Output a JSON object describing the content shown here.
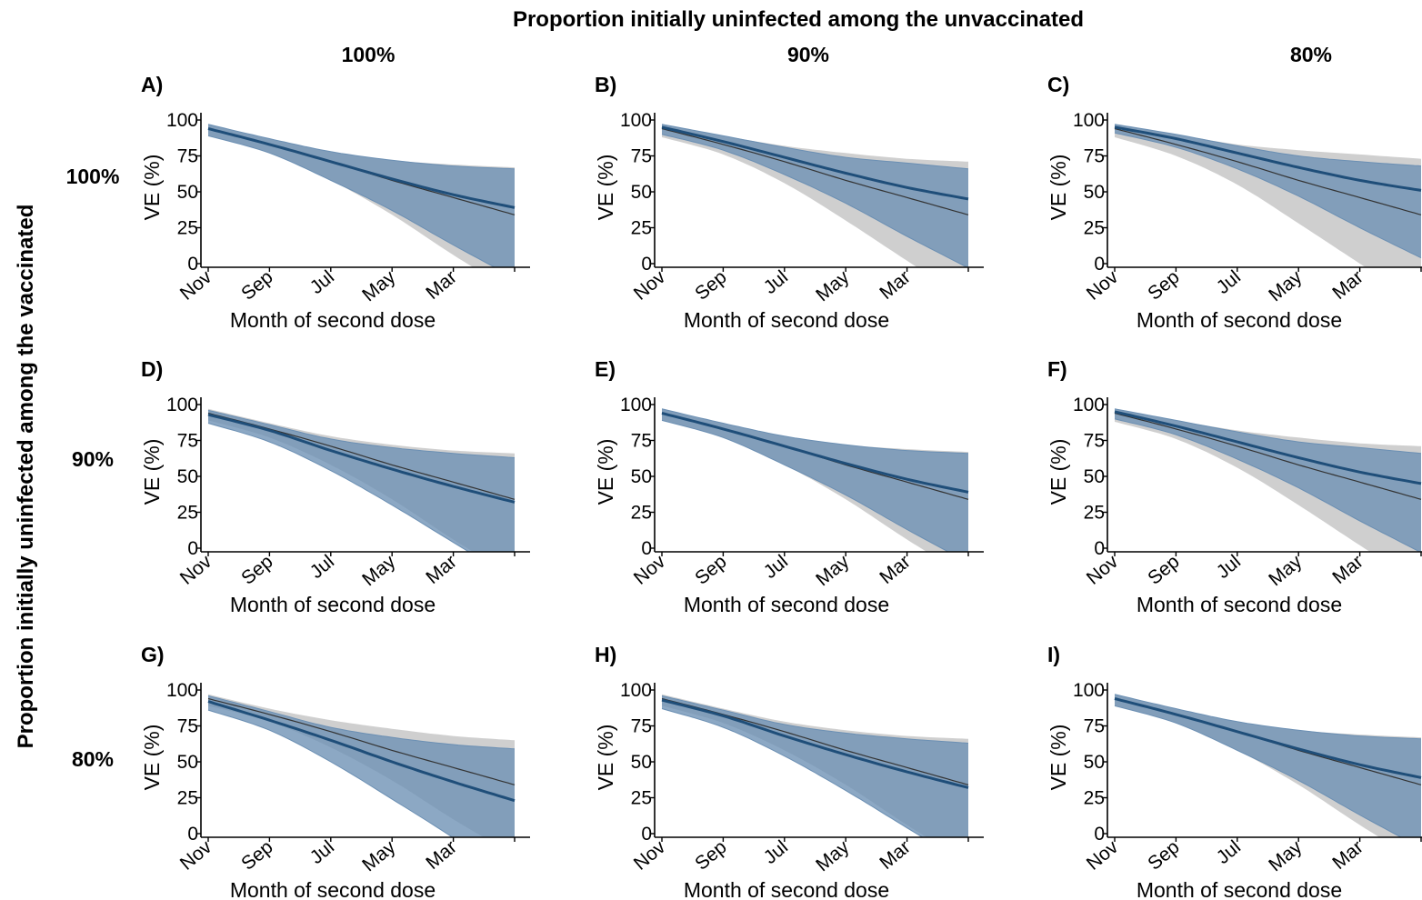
{
  "figure": {
    "col_header_title": "Proportion initially uninfected among the unvaccinated",
    "row_header_title": "Proportion initially uninfected among the vaccinated",
    "col_headers": [
      "100%",
      "90%",
      "80%"
    ],
    "row_headers": [
      "100%",
      "90%",
      "80%"
    ]
  },
  "colors": {
    "main_line": "#1f4e79",
    "main_band": "#6b8fb3",
    "ref_line": "#333333",
    "ref_band": "#cfcfcf"
  },
  "chart_data": [
    {
      "type": "line",
      "panel_label": "A)",
      "xlabel": "Month of second dose",
      "ylabel": "VE (%)",
      "x_ticks": [
        "Nov",
        "Sep",
        "Jul",
        "May",
        "Mar"
      ],
      "y_ticks": [
        "0",
        "25",
        "50",
        "75",
        "100"
      ],
      "ylim": [
        0,
        100
      ],
      "x": [
        0,
        1,
        2,
        3,
        4,
        5
      ],
      "series": [
        {
          "role": "main",
          "values": [
            94,
            83,
            71,
            59,
            48,
            39
          ],
          "lower": [
            89,
            77,
            58,
            37,
            13,
            -10
          ],
          "upper": [
            97,
            87,
            78,
            72,
            68,
            66
          ]
        },
        {
          "role": "reference",
          "values": [
            94,
            83,
            71,
            58,
            46,
            34
          ],
          "lower": [
            89,
            77,
            58,
            34,
            6,
            -20
          ],
          "upper": [
            97,
            87,
            78,
            72,
            69,
            67
          ]
        }
      ]
    },
    {
      "type": "line",
      "panel_label": "B)",
      "xlabel": "Month of second dose",
      "ylabel": "VE (%)",
      "x_ticks": [
        "Nov",
        "Sep",
        "Jul",
        "May",
        "Mar"
      ],
      "y_ticks": [
        "0",
        "25",
        "50",
        "75",
        "100"
      ],
      "ylim": [
        0,
        100
      ],
      "x": [
        0,
        1,
        2,
        3,
        4,
        5
      ],
      "series": [
        {
          "role": "main",
          "values": [
            95,
            85,
            74,
            63,
            53,
            45
          ],
          "lower": [
            90,
            79,
            62,
            42,
            19,
            -3
          ],
          "upper": [
            97,
            89,
            81,
            74,
            70,
            66
          ]
        },
        {
          "role": "reference",
          "values": [
            94,
            83,
            71,
            58,
            46,
            34
          ],
          "lower": [
            88,
            76,
            56,
            30,
            2,
            -25
          ],
          "upper": [
            97,
            89,
            82,
            77,
            73,
            71
          ]
        }
      ]
    },
    {
      "type": "line",
      "panel_label": "C)",
      "xlabel": "Month of second dose",
      "ylabel": "VE (%)",
      "x_ticks": [
        "Nov",
        "Sep",
        "Jul",
        "May",
        "Mar"
      ],
      "y_ticks": [
        "0",
        "25",
        "50",
        "75",
        "100"
      ],
      "ylim": [
        0,
        100
      ],
      "x": [
        0,
        1,
        2,
        3,
        4,
        5
      ],
      "series": [
        {
          "role": "main",
          "values": [
            95,
            87,
            77,
            67,
            58,
            51
          ],
          "lower": [
            91,
            81,
            66,
            47,
            25,
            4
          ],
          "upper": [
            97,
            90,
            82,
            75,
            71,
            68
          ]
        },
        {
          "role": "reference",
          "values": [
            94,
            83,
            71,
            58,
            46,
            34
          ],
          "lower": [
            88,
            75,
            55,
            28,
            0,
            -28
          ],
          "upper": [
            97,
            90,
            83,
            79,
            76,
            73
          ]
        }
      ]
    },
    {
      "type": "line",
      "panel_label": "D)",
      "xlabel": "Month of second dose",
      "ylabel": "VE (%)",
      "x_ticks": [
        "Nov",
        "Sep",
        "Jul",
        "May",
        "Mar"
      ],
      "y_ticks": [
        "0",
        "25",
        "50",
        "75",
        "100"
      ],
      "ylim": [
        0,
        100
      ],
      "x": [
        0,
        1,
        2,
        3,
        4,
        5
      ],
      "series": [
        {
          "role": "main",
          "values": [
            93,
            82,
            68,
            55,
            43,
            32
          ],
          "lower": [
            87,
            74,
            54,
            30,
            4,
            -22
          ],
          "upper": [
            96,
            86,
            76,
            70,
            66,
            63
          ]
        },
        {
          "role": "reference",
          "values": [
            94,
            83,
            71,
            58,
            46,
            34
          ],
          "lower": [
            89,
            77,
            58,
            34,
            6,
            -20
          ],
          "upper": [
            97,
            87,
            78,
            72,
            68,
            66
          ]
        }
      ]
    },
    {
      "type": "line",
      "panel_label": "E)",
      "xlabel": "Month of second dose",
      "ylabel": "VE (%)",
      "x_ticks": [
        "Nov",
        "Sep",
        "Jul",
        "May",
        "Mar"
      ],
      "y_ticks": [
        "0",
        "25",
        "50",
        "75",
        "100"
      ],
      "ylim": [
        0,
        100
      ],
      "x": [
        0,
        1,
        2,
        3,
        4,
        5
      ],
      "series": [
        {
          "role": "main",
          "values": [
            94,
            83,
            71,
            59,
            48,
            39
          ],
          "lower": [
            89,
            77,
            58,
            37,
            13,
            -10
          ],
          "upper": [
            97,
            87,
            78,
            72,
            68,
            66
          ]
        },
        {
          "role": "reference",
          "values": [
            94,
            83,
            71,
            58,
            46,
            34
          ],
          "lower": [
            89,
            77,
            58,
            34,
            6,
            -20
          ],
          "upper": [
            97,
            87,
            78,
            72,
            69,
            67
          ]
        }
      ]
    },
    {
      "type": "line",
      "panel_label": "F)",
      "xlabel": "Month of second dose",
      "ylabel": "VE (%)",
      "x_ticks": [
        "Nov",
        "Sep",
        "Jul",
        "May",
        "Mar"
      ],
      "y_ticks": [
        "0",
        "25",
        "50",
        "75",
        "100"
      ],
      "ylim": [
        0,
        100
      ],
      "x": [
        0,
        1,
        2,
        3,
        4,
        5
      ],
      "series": [
        {
          "role": "main",
          "values": [
            95,
            85,
            74,
            63,
            53,
            45
          ],
          "lower": [
            90,
            79,
            62,
            42,
            19,
            -3
          ],
          "upper": [
            97,
            89,
            81,
            74,
            70,
            66
          ]
        },
        {
          "role": "reference",
          "values": [
            94,
            83,
            71,
            58,
            46,
            34
          ],
          "lower": [
            88,
            76,
            56,
            30,
            2,
            -25
          ],
          "upper": [
            97,
            89,
            82,
            77,
            73,
            71
          ]
        }
      ]
    },
    {
      "type": "line",
      "panel_label": "G)",
      "xlabel": "Month of second dose",
      "ylabel": "VE (%)",
      "x_ticks": [
        "Nov",
        "Sep",
        "Jul",
        "May",
        "Mar"
      ],
      "y_ticks": [
        "0",
        "25",
        "50",
        "75",
        "100"
      ],
      "ylim": [
        0,
        100
      ],
      "x": [
        0,
        1,
        2,
        3,
        4,
        5
      ],
      "series": [
        {
          "role": "main",
          "values": [
            92,
            79,
            65,
            50,
            36,
            23
          ],
          "lower": [
            86,
            72,
            50,
            24,
            -3,
            -33
          ],
          "upper": [
            96,
            85,
            74,
            67,
            62,
            59
          ]
        },
        {
          "role": "reference",
          "values": [
            94,
            83,
            71,
            58,
            46,
            34
          ],
          "lower": [
            89,
            78,
            60,
            37,
            10,
            -15
          ],
          "upper": [
            97,
            87,
            79,
            73,
            68,
            65
          ]
        }
      ]
    },
    {
      "type": "line",
      "panel_label": "H)",
      "xlabel": "Month of second dose",
      "ylabel": "VE (%)",
      "x_ticks": [
        "Nov",
        "Sep",
        "Jul",
        "May",
        "Mar"
      ],
      "y_ticks": [
        "0",
        "25",
        "50",
        "75",
        "100"
      ],
      "ylim": [
        0,
        100
      ],
      "x": [
        0,
        1,
        2,
        3,
        4,
        5
      ],
      "series": [
        {
          "role": "main",
          "values": [
            93,
            82,
            68,
            55,
            43,
            32
          ],
          "lower": [
            87,
            74,
            54,
            30,
            4,
            -22
          ],
          "upper": [
            96,
            86,
            76,
            70,
            66,
            63
          ]
        },
        {
          "role": "reference",
          "values": [
            94,
            83,
            71,
            58,
            46,
            34
          ],
          "lower": [
            89,
            77,
            58,
            34,
            6,
            -20
          ],
          "upper": [
            97,
            87,
            78,
            72,
            68,
            66
          ]
        }
      ]
    },
    {
      "type": "line",
      "panel_label": "I)",
      "xlabel": "Month of second dose",
      "ylabel": "VE (%)",
      "x_ticks": [
        "Nov",
        "Sep",
        "Jul",
        "May",
        "Mar"
      ],
      "y_ticks": [
        "0",
        "25",
        "50",
        "75",
        "100"
      ],
      "ylim": [
        0,
        100
      ],
      "x": [
        0,
        1,
        2,
        3,
        4,
        5
      ],
      "series": [
        {
          "role": "main",
          "values": [
            94,
            83,
            71,
            59,
            48,
            39
          ],
          "lower": [
            89,
            77,
            58,
            37,
            13,
            -10
          ],
          "upper": [
            97,
            87,
            78,
            72,
            68,
            66
          ]
        },
        {
          "role": "reference",
          "values": [
            94,
            83,
            71,
            58,
            46,
            34
          ],
          "lower": [
            89,
            77,
            58,
            34,
            6,
            -20
          ],
          "upper": [
            97,
            87,
            78,
            72,
            69,
            67
          ]
        }
      ]
    }
  ]
}
